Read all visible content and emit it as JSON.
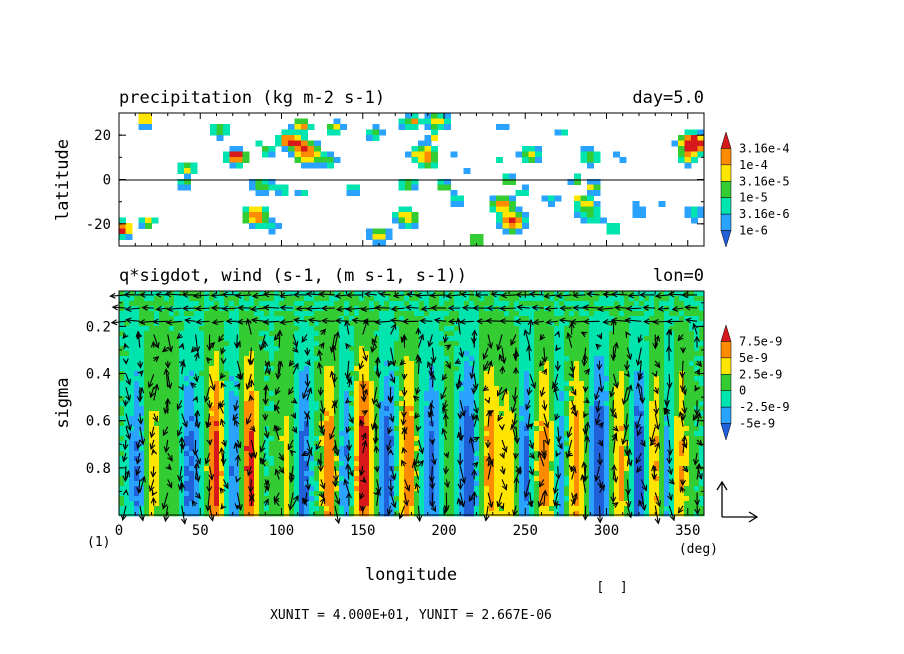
{
  "chart_data": [
    {
      "type": "heatmap",
      "title": "precipitation (kg m-2 s-1)",
      "title_right": "day=5.0",
      "ylabel": "latitude",
      "ylim": [
        -30,
        30
      ],
      "xlim": [
        0,
        360
      ],
      "yticks": [
        "20",
        "0",
        "-20"
      ],
      "ytick_values": [
        20,
        0,
        -20
      ],
      "zero_line": 0,
      "colorbar": {
        "labels": [
          "3.16e-4",
          "1e-4",
          "3.16e-5",
          "1e-5",
          "3.16e-6",
          "1e-6"
        ],
        "colors": [
          "#d7191c",
          "#ff8c00",
          "#ffe600",
          "#33cc33",
          "#00e5b0",
          "#29a3ff",
          "#2060d8"
        ]
      }
    },
    {
      "type": "heatmap",
      "title": "q*sigdot, wind (s-1, (m s-1, s-1))",
      "title_right": "lon=0",
      "ylabel": "sigma",
      "xlabel": "longitude",
      "x_unit": "(deg)",
      "ylim": [
        0.05,
        1.0
      ],
      "xlim": [
        0,
        360
      ],
      "xticks": [
        "0",
        "50",
        "100",
        "150",
        "200",
        "250",
        "300",
        "350"
      ],
      "xtick_values": [
        0,
        50,
        100,
        150,
        200,
        250,
        300,
        350
      ],
      "yticks": [
        "0.2",
        "0.4",
        "0.6",
        "0.8"
      ],
      "ytick_values": [
        0.2,
        0.4,
        0.6,
        0.8
      ],
      "colorbar": {
        "labels": [
          "7.5e-9",
          "5e-9",
          "2.5e-9",
          "0",
          "-2.5e-9",
          "-5e-9"
        ],
        "colors": [
          "#d7191c",
          "#ff8c00",
          "#ffe600",
          "#33cc33",
          "#00e5b0",
          "#29a3ff",
          "#2060d8"
        ]
      },
      "panel_tag": "(1)",
      "unit_note": "XUNIT = 4.000E+01, YUNIT = 2.667E-06",
      "bracket_note": "[  ]"
    }
  ]
}
